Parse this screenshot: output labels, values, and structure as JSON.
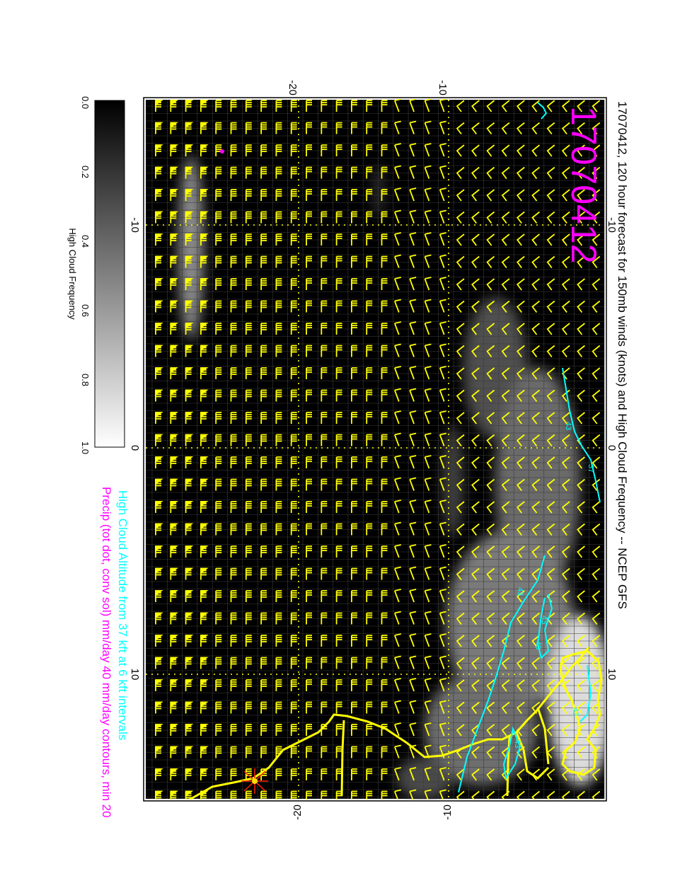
{
  "title": "17070412, 120 hour forecast for 150mb winds (knots) and High Cloud Frequency -- NCEP GFS",
  "stamp": "17070412",
  "stamp_color": "#ff00ff",
  "legend_line1": "High Cloud Altitude from 37 kft at 6 kft intervals",
  "legend_line1_color": "#00ffff",
  "legend_line2": "Precip (tot dot, conv sol) mm/day 40 mm/day contours, min 20",
  "legend_line2_color": "#ff00ff",
  "colorbar": {
    "label": "High Cloud Frequency",
    "ticks": [
      "0.0",
      "0.2",
      "0.4",
      "0.6",
      "0.8",
      "1.0"
    ],
    "range": [
      0.0,
      1.0
    ],
    "colors": [
      "#000000",
      "#ffffff"
    ]
  },
  "axes": {
    "top_ticks": [
      "-20",
      "-10"
    ],
    "bottom_ticks": [
      "-20",
      "-10"
    ],
    "left_ticks": [
      "-10",
      "0",
      "10"
    ],
    "right_ticks": [
      "-10",
      "0",
      "10"
    ]
  },
  "contour_labels": [
    "43",
    "37",
    "43",
    "49",
    "43",
    "43",
    "43"
  ],
  "colors": {
    "barbs": "#ffff00",
    "coast": "#ffff00",
    "cloud_contours": "#00ffff",
    "background": "#000000"
  }
}
